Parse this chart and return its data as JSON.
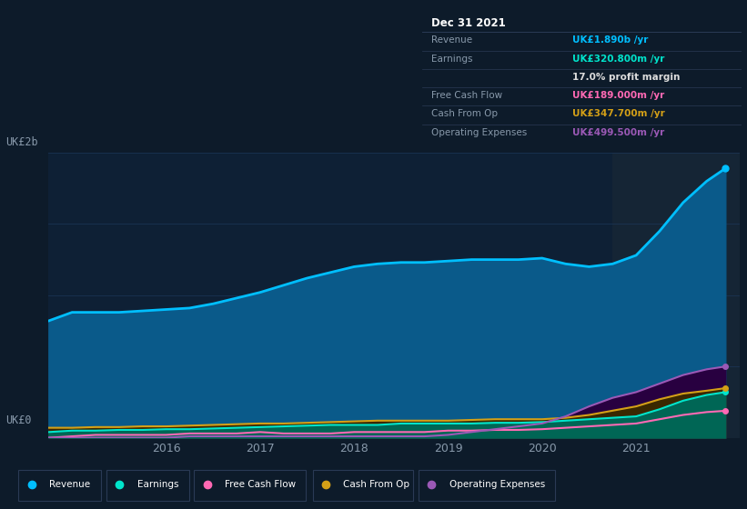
{
  "bg_color": "#0d1b2a",
  "plot_bg_color": "#0e2035",
  "grid_color": "#1e3a5f",
  "axis_label_color": "#8899aa",
  "tick_color": "#8899aa",
  "years": [
    2014.75,
    2015.0,
    2015.25,
    2015.5,
    2015.75,
    2016.0,
    2016.25,
    2016.5,
    2016.75,
    2017.0,
    2017.25,
    2017.5,
    2017.75,
    2018.0,
    2018.25,
    2018.5,
    2018.75,
    2019.0,
    2019.25,
    2019.5,
    2019.75,
    2020.0,
    2020.25,
    2020.5,
    2020.75,
    2021.0,
    2021.25,
    2021.5,
    2021.75,
    2021.95
  ],
  "revenue": [
    0.82,
    0.88,
    0.88,
    0.88,
    0.89,
    0.9,
    0.91,
    0.94,
    0.98,
    1.02,
    1.07,
    1.12,
    1.16,
    1.2,
    1.22,
    1.23,
    1.23,
    1.24,
    1.25,
    1.25,
    1.25,
    1.26,
    1.22,
    1.2,
    1.22,
    1.28,
    1.45,
    1.65,
    1.8,
    1.89
  ],
  "earnings": [
    0.04,
    0.05,
    0.05,
    0.055,
    0.055,
    0.06,
    0.06,
    0.065,
    0.07,
    0.075,
    0.08,
    0.085,
    0.09,
    0.09,
    0.09,
    0.1,
    0.1,
    0.1,
    0.1,
    0.105,
    0.105,
    0.11,
    0.12,
    0.13,
    0.14,
    0.15,
    0.2,
    0.26,
    0.3,
    0.32
  ],
  "free_cash_flow": [
    0.0,
    0.01,
    0.02,
    0.02,
    0.02,
    0.02,
    0.03,
    0.03,
    0.03,
    0.04,
    0.03,
    0.03,
    0.03,
    0.04,
    0.04,
    0.04,
    0.04,
    0.05,
    0.05,
    0.055,
    0.055,
    0.06,
    0.07,
    0.08,
    0.09,
    0.1,
    0.13,
    0.16,
    0.18,
    0.189
  ],
  "cash_from_op": [
    0.07,
    0.07,
    0.075,
    0.075,
    0.08,
    0.08,
    0.085,
    0.09,
    0.095,
    0.1,
    0.1,
    0.105,
    0.11,
    0.115,
    0.12,
    0.12,
    0.12,
    0.12,
    0.125,
    0.13,
    0.13,
    0.13,
    0.14,
    0.16,
    0.19,
    0.22,
    0.27,
    0.31,
    0.33,
    0.348
  ],
  "op_expenses": [
    0.0,
    0.0,
    0.0,
    0.0,
    0.0,
    0.0,
    0.01,
    0.01,
    0.01,
    0.01,
    0.01,
    0.01,
    0.01,
    0.01,
    0.01,
    0.01,
    0.01,
    0.02,
    0.04,
    0.06,
    0.08,
    0.1,
    0.15,
    0.22,
    0.28,
    0.32,
    0.38,
    0.44,
    0.48,
    0.5
  ],
  "revenue_color": "#00bfff",
  "earnings_color": "#00e5cc",
  "fcf_color": "#ff69b4",
  "cashop_color": "#d4a017",
  "opex_color": "#9b59b6",
  "revenue_fill": "#0a5a8a",
  "earnings_fill": "#006655",
  "fcf_fill": "#3a0a22",
  "cashop_fill": "#3a2800",
  "opex_fill": "#280040",
  "ylim": [
    0.0,
    2.0
  ],
  "xlim": [
    2014.75,
    2022.1
  ],
  "x_ticks": [
    2016,
    2017,
    2018,
    2019,
    2020,
    2021
  ],
  "highlight_x_start": 2020.75,
  "highlight_x_end": 2022.1,
  "highlight_color": "#152535",
  "info_box": {
    "title": "Dec 31 2021",
    "rows": [
      {
        "label": "Revenue",
        "value": "UK£1.890b /yr",
        "value_color": "#00bfff"
      },
      {
        "label": "Earnings",
        "value": "UK£320.800m /yr",
        "value_color": "#00e5cc"
      },
      {
        "label": "",
        "value": "17.0% profit margin",
        "value_color": "#dddddd"
      },
      {
        "label": "Free Cash Flow",
        "value": "UK£189.000m /yr",
        "value_color": "#ff69b4"
      },
      {
        "label": "Cash From Op",
        "value": "UK£347.700m /yr",
        "value_color": "#d4a017"
      },
      {
        "label": "Operating Expenses",
        "value": "UK£499.500m /yr",
        "value_color": "#9b59b6"
      }
    ]
  },
  "legend_items": [
    {
      "label": "Revenue",
      "color": "#00bfff"
    },
    {
      "label": "Earnings",
      "color": "#00e5cc"
    },
    {
      "label": "Free Cash Flow",
      "color": "#ff69b4"
    },
    {
      "label": "Cash From Op",
      "color": "#d4a017"
    },
    {
      "label": "Operating Expenses",
      "color": "#9b59b6"
    }
  ]
}
